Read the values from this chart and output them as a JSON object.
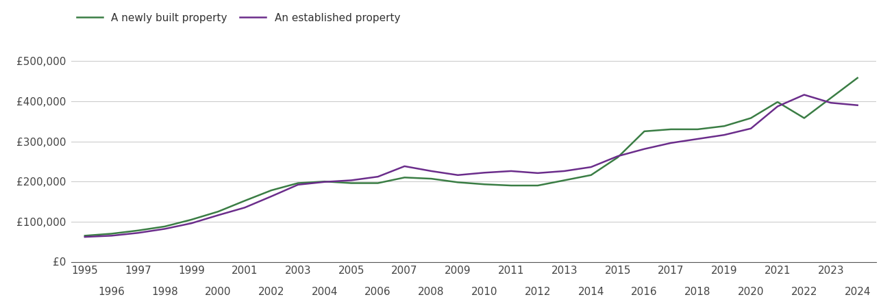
{
  "newly_built": {
    "years": [
      1995,
      1996,
      1997,
      1998,
      1999,
      2000,
      2001,
      2002,
      2003,
      2004,
      2005,
      2006,
      2007,
      2008,
      2009,
      2010,
      2011,
      2012,
      2013,
      2014,
      2015,
      2016,
      2017,
      2018,
      2019,
      2020,
      2021,
      2022,
      2023,
      2024
    ],
    "values": [
      65000,
      70000,
      78000,
      88000,
      105000,
      125000,
      152000,
      178000,
      196000,
      200000,
      196000,
      196000,
      210000,
      207000,
      198000,
      193000,
      190000,
      190000,
      203000,
      216000,
      260000,
      325000,
      330000,
      330000,
      338000,
      358000,
      398000,
      358000,
      408000,
      458000
    ]
  },
  "established": {
    "years": [
      1995,
      1996,
      1997,
      1998,
      1999,
      2000,
      2001,
      2002,
      2003,
      2004,
      2005,
      2006,
      2007,
      2008,
      2009,
      2010,
      2011,
      2012,
      2013,
      2014,
      2015,
      2016,
      2017,
      2018,
      2019,
      2020,
      2021,
      2022,
      2023,
      2024
    ],
    "values": [
      62000,
      65000,
      72000,
      82000,
      96000,
      116000,
      135000,
      163000,
      192000,
      199000,
      203000,
      212000,
      238000,
      226000,
      216000,
      222000,
      226000,
      221000,
      226000,
      236000,
      263000,
      281000,
      296000,
      306000,
      316000,
      332000,
      387000,
      416000,
      396000,
      390000
    ]
  },
  "newly_built_color": "#3a7d44",
  "established_color": "#6b2d8b",
  "newly_built_label": "A newly built property",
  "established_label": "An established property",
  "ylim": [
    0,
    560000
  ],
  "yticks": [
    0,
    100000,
    200000,
    300000,
    400000,
    500000
  ],
  "ytick_labels": [
    "£0",
    "£100,000",
    "£200,000",
    "£300,000",
    "£400,000",
    "£500,000"
  ],
  "xtick_odd": [
    1995,
    1997,
    1999,
    2001,
    2003,
    2005,
    2007,
    2009,
    2011,
    2013,
    2015,
    2017,
    2019,
    2021,
    2023
  ],
  "xtick_even": [
    1996,
    1998,
    2000,
    2002,
    2004,
    2006,
    2008,
    2010,
    2012,
    2014,
    2016,
    2018,
    2020,
    2022,
    2024
  ],
  "background_color": "#ffffff",
  "grid_color": "#cccccc",
  "line_width": 1.8
}
